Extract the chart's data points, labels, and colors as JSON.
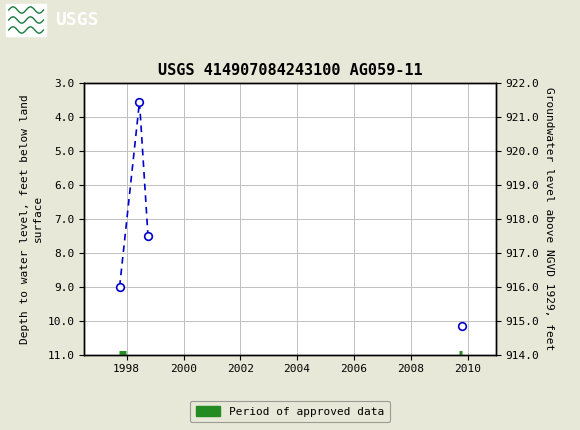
{
  "title": "USGS 414907084243100 AG059-11",
  "ylabel_left": "Depth to water level, feet below land\nsurface",
  "ylabel_right": "Groundwater level above NGVD 1929, feet",
  "header_color": "#1a7a3c",
  "background_color": "#e8e8d8",
  "plot_bg_color": "#ffffff",
  "grid_color": "#c0c0c0",
  "xlim": [
    1996.5,
    2011.0
  ],
  "ylim_left": [
    3.0,
    11.0
  ],
  "ylim_right": [
    914.0,
    922.0
  ],
  "x_ticks": [
    1998,
    2000,
    2002,
    2004,
    2006,
    2008,
    2010
  ],
  "y_ticks_left": [
    3.0,
    4.0,
    5.0,
    6.0,
    7.0,
    8.0,
    9.0,
    10.0,
    11.0
  ],
  "y_ticks_right": [
    914.0,
    915.0,
    916.0,
    917.0,
    918.0,
    919.0,
    920.0,
    921.0,
    922.0
  ],
  "data_points_x": [
    1997.75,
    1998.45,
    1998.75,
    2009.8
  ],
  "data_points_y": [
    9.0,
    3.55,
    7.5,
    10.15
  ],
  "connected_indices": [
    0,
    1,
    2
  ],
  "point_color": "#0000cc",
  "line_color": "#0000cc",
  "green_color": "#228b22",
  "green_bars": [
    {
      "x_start": 1997.72,
      "x_end": 1997.98
    },
    {
      "x_start": 2009.7,
      "x_end": 2009.82
    }
  ],
  "green_bar_y": 10.97,
  "legend_label": "Period of approved data",
  "font_family": "monospace",
  "title_fontsize": 11,
  "tick_fontsize": 8,
  "ylabel_fontsize": 8
}
